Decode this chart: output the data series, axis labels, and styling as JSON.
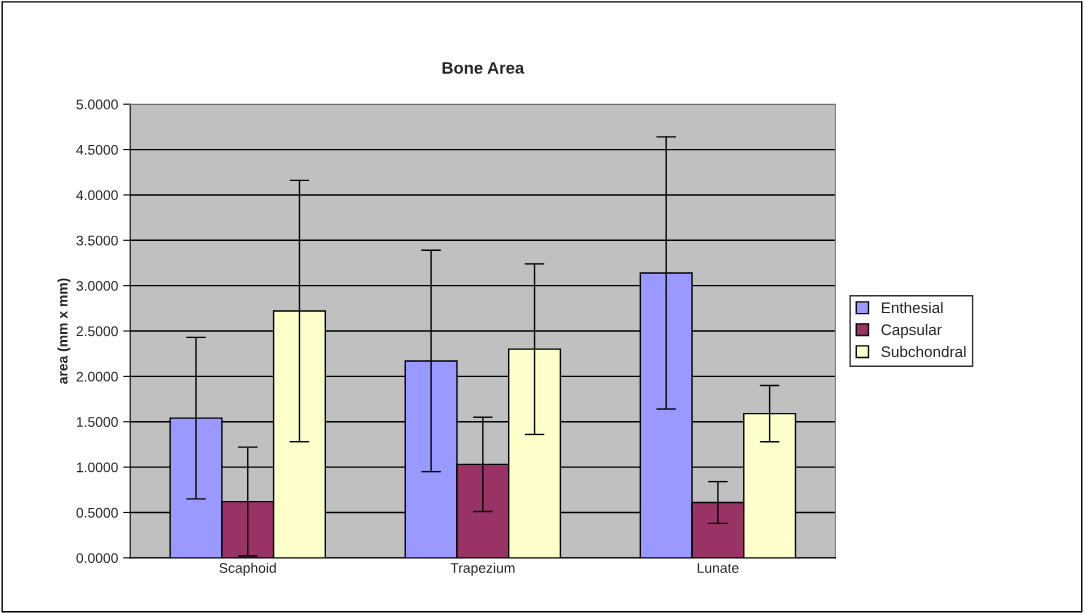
{
  "chart_data": {
    "type": "bar",
    "title": "Bone Area",
    "ylabel": "area (mm x mm)",
    "categories": [
      "Scaphoid",
      "Trapezium",
      "Lunate"
    ],
    "series": [
      {
        "name": "Enthesial",
        "color": "#9999ff",
        "values": [
          1.54,
          2.17,
          3.14
        ],
        "errors": [
          0.89,
          1.22,
          1.5
        ]
      },
      {
        "name": "Capsular",
        "color": "#993366",
        "values": [
          0.62,
          1.03,
          0.61
        ],
        "errors": [
          0.6,
          0.52,
          0.23
        ]
      },
      {
        "name": "Subchondral",
        "color": "#ffffcc",
        "values": [
          2.72,
          2.3,
          1.59
        ],
        "errors": [
          1.44,
          0.94,
          0.31
        ]
      }
    ],
    "ylim": [
      0,
      5
    ],
    "yticks": [
      {
        "value": 0,
        "label": "0.0000"
      },
      {
        "value": 0.5,
        "label": "0.5000"
      },
      {
        "value": 1,
        "label": "1.0000"
      },
      {
        "value": 1.5,
        "label": "1.5000"
      },
      {
        "value": 2,
        "label": "2.0000"
      },
      {
        "value": 2.5,
        "label": "2.5000"
      },
      {
        "value": 3,
        "label": "3.0000"
      },
      {
        "value": 3.5,
        "label": "3.5000"
      },
      {
        "value": 4,
        "label": "4.0000"
      },
      {
        "value": 4.5,
        "label": "4.5000"
      },
      {
        "value": 5,
        "label": "5.0000"
      }
    ],
    "grid": "y",
    "legend": "right"
  }
}
